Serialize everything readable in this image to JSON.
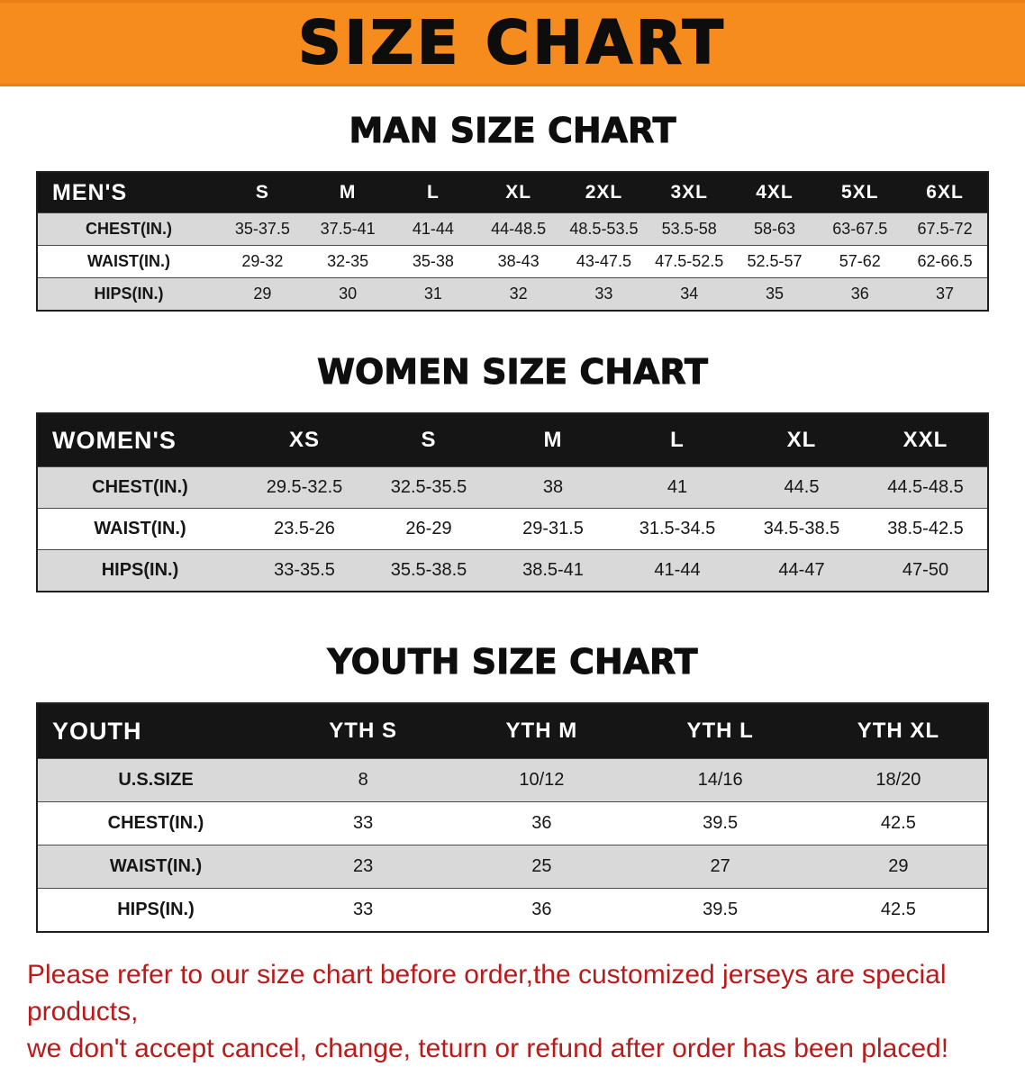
{
  "banner": {
    "title": "SIZE CHART",
    "bg_color": "#f68b1e",
    "text_color": "#0d0d0d"
  },
  "tables": [
    {
      "id": "men",
      "heading": "MAN SIZE CHART",
      "header": [
        "MEN'S",
        "S",
        "M",
        "L",
        "XL",
        "2XL",
        "3XL",
        "4XL",
        "5XL",
        "6XL"
      ],
      "rows": [
        [
          "CHEST(IN.)",
          "35-37.5",
          "37.5-41",
          "41-44",
          "44-48.5",
          "48.5-53.5",
          "53.5-58",
          "58-63",
          "63-67.5",
          "67.5-72"
        ],
        [
          "WAIST(IN.)",
          "29-32",
          "32-35",
          "35-38",
          "38-43",
          "43-47.5",
          "47.5-52.5",
          "52.5-57",
          "57-62",
          "62-66.5"
        ],
        [
          "HIPS(IN.)",
          "29",
          "30",
          "31",
          "32",
          "33",
          "34",
          "35",
          "36",
          "37"
        ]
      ]
    },
    {
      "id": "women",
      "heading": "WOMEN SIZE CHART",
      "header": [
        "WOMEN'S",
        "XS",
        "S",
        "M",
        "L",
        "XL",
        "XXL"
      ],
      "rows": [
        [
          "CHEST(IN.)",
          "29.5-32.5",
          "32.5-35.5",
          "38",
          "41",
          "44.5",
          "44.5-48.5"
        ],
        [
          "WAIST(IN.)",
          "23.5-26",
          "26-29",
          "29-31.5",
          "31.5-34.5",
          "34.5-38.5",
          "38.5-42.5"
        ],
        [
          "HIPS(IN.)",
          "33-35.5",
          "35.5-38.5",
          "38.5-41",
          "41-44",
          "44-47",
          "47-50"
        ]
      ]
    },
    {
      "id": "youth",
      "heading": "YOUTH SIZE CHART",
      "header": [
        "YOUTH",
        "YTH S",
        "YTH M",
        "YTH L",
        "YTH XL"
      ],
      "rows": [
        [
          "U.S.SIZE",
          "8",
          "10/12",
          "14/16",
          "18/20"
        ],
        [
          "CHEST(IN.)",
          "33",
          "36",
          "39.5",
          "42.5"
        ],
        [
          "WAIST(IN.)",
          "23",
          "25",
          "27",
          "29"
        ],
        [
          "HIPS(IN.)",
          "33",
          "36",
          "39.5",
          "42.5"
        ]
      ]
    }
  ],
  "footer": {
    "line1": "Please refer to our size chart before order,the customized jerseys are special products,",
    "line2": "we don't accept cancel, change, teturn or refund after order has been placed!",
    "text_color": "#b71c1c"
  }
}
